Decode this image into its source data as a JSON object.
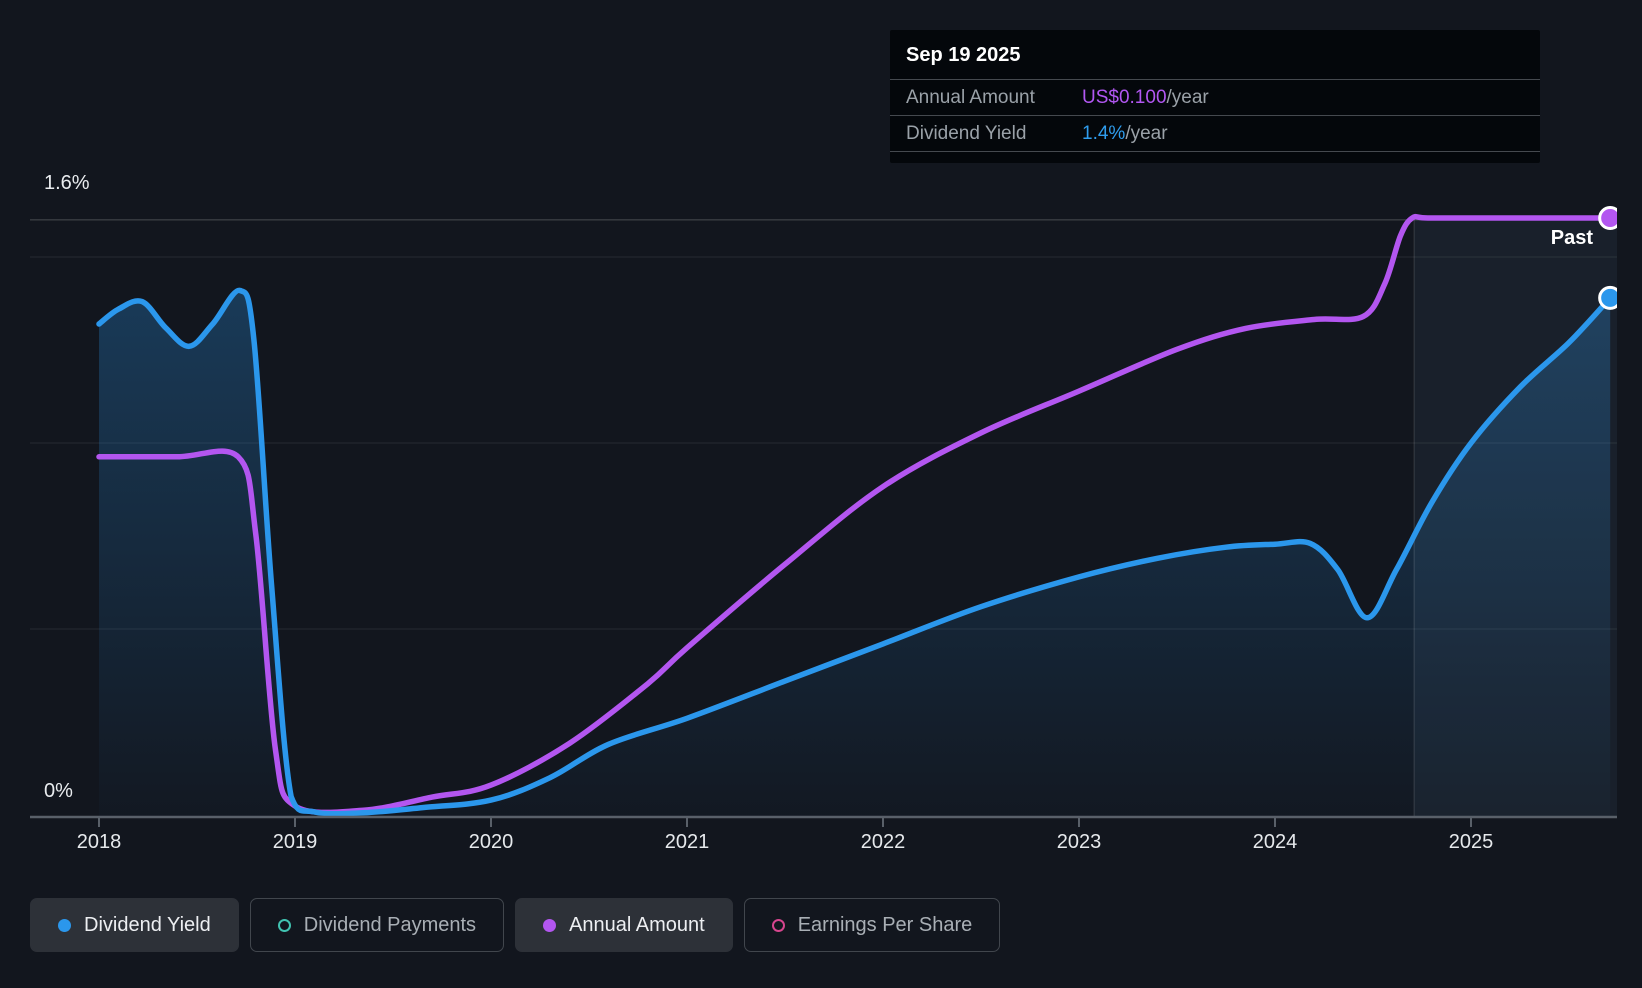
{
  "tooltip": {
    "date": "Sep 19 2025",
    "rows": [
      {
        "label": "Annual Amount",
        "value": "US$0.100",
        "suffix": "/year",
        "color": "#b257f2"
      },
      {
        "label": "Dividend Yield",
        "value": "1.4%",
        "suffix": "/year",
        "color": "#2f9dee"
      }
    ]
  },
  "y_axis": {
    "top_label": "1.6%",
    "zero_label": "0%"
  },
  "x_axis": {
    "labels": [
      "2018",
      "2019",
      "2020",
      "2021",
      "2022",
      "2023",
      "2024",
      "2025"
    ]
  },
  "past_label": "Past",
  "legend": [
    {
      "label": "Dividend Yield",
      "color": "#2b97ec",
      "style": "filled",
      "active": true
    },
    {
      "label": "Dividend Payments",
      "color": "#41c3b1",
      "style": "ring",
      "active": false
    },
    {
      "label": "Annual Amount",
      "color": "#b356f0",
      "style": "filled",
      "active": true
    },
    {
      "label": "Earnings Per Share",
      "color": "#d6458e",
      "style": "ring",
      "active": false
    }
  ],
  "chart_data": {
    "type": "line",
    "title": "Dividend history",
    "x_range": [
      2018.0,
      2025.72
    ],
    "x_ticks": [
      2018,
      2019,
      2020,
      2021,
      2022,
      2023,
      2024,
      2025
    ],
    "y_axis_left": {
      "unit": "%",
      "min": 0,
      "max": 1.6,
      "gridlines": [
        0.5,
        1.0,
        1.5
      ],
      "top_line": 1.6
    },
    "past_region_start": 2024.71,
    "end_date": "Sep 19 2025",
    "grid": true,
    "legend_position": "bottom",
    "series": [
      {
        "name": "Annual Amount",
        "unit": "US$",
        "color": "#b356f0",
        "area_fill": false,
        "points": [
          [
            2018.0,
            0.06
          ],
          [
            2018.4,
            0.06
          ],
          [
            2018.71,
            0.06
          ],
          [
            2018.8,
            0.047
          ],
          [
            2018.9,
            0.011
          ],
          [
            2019.0,
            0.0015
          ],
          [
            2019.35,
            0.0008
          ],
          [
            2019.7,
            0.003
          ],
          [
            2020.0,
            0.005
          ],
          [
            2020.4,
            0.012
          ],
          [
            2020.8,
            0.022
          ],
          [
            2021.0,
            0.028
          ],
          [
            2021.5,
            0.042
          ],
          [
            2022.0,
            0.055
          ],
          [
            2022.5,
            0.064
          ],
          [
            2023.0,
            0.071
          ],
          [
            2023.5,
            0.078
          ],
          [
            2023.85,
            0.0815
          ],
          [
            2024.2,
            0.083
          ],
          [
            2024.45,
            0.0835
          ],
          [
            2024.56,
            0.089
          ],
          [
            2024.64,
            0.097
          ],
          [
            2024.7,
            0.1
          ],
          [
            2024.78,
            0.1
          ],
          [
            2025.1,
            0.1
          ],
          [
            2025.4,
            0.1
          ],
          [
            2025.71,
            0.1
          ]
        ]
      },
      {
        "name": "Dividend Yield",
        "unit": "%",
        "color": "#2b97ec",
        "area_fill": true,
        "points": [
          [
            2018.0,
            1.32
          ],
          [
            2018.1,
            1.36
          ],
          [
            2018.22,
            1.38
          ],
          [
            2018.34,
            1.31
          ],
          [
            2018.46,
            1.26
          ],
          [
            2018.58,
            1.32
          ],
          [
            2018.72,
            1.41
          ],
          [
            2018.79,
            1.28
          ],
          [
            2018.88,
            0.62
          ],
          [
            2018.98,
            0.05
          ],
          [
            2019.1,
            0.008
          ],
          [
            2019.35,
            0.006
          ],
          [
            2019.65,
            0.02
          ],
          [
            2020.0,
            0.04
          ],
          [
            2020.3,
            0.1
          ],
          [
            2020.6,
            0.19
          ],
          [
            2021.0,
            0.26
          ],
          [
            2021.5,
            0.36
          ],
          [
            2022.0,
            0.46
          ],
          [
            2022.5,
            0.56
          ],
          [
            2023.0,
            0.64
          ],
          [
            2023.4,
            0.69
          ],
          [
            2023.75,
            0.72
          ],
          [
            2024.0,
            0.728
          ],
          [
            2024.18,
            0.73
          ],
          [
            2024.32,
            0.66
          ],
          [
            2024.47,
            0.53
          ],
          [
            2024.62,
            0.66
          ],
          [
            2024.8,
            0.84
          ],
          [
            2025.0,
            1.0
          ],
          [
            2025.25,
            1.15
          ],
          [
            2025.5,
            1.27
          ],
          [
            2025.71,
            1.39
          ]
        ]
      }
    ]
  }
}
